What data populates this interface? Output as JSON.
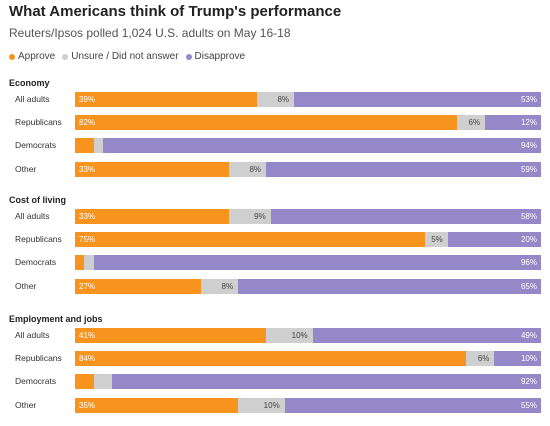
{
  "title": "What Americans think of Trump's performance",
  "subtitle": "Reuters/Ipsos polled 1,024 U.S. adults on May 16-18",
  "legend": [
    {
      "label": "Approve",
      "color": "#f7941d"
    },
    {
      "label": "Unsure / Did not answer",
      "color": "#cfcfcf"
    },
    {
      "label": "Disapprove",
      "color": "#9488c8"
    }
  ],
  "chart_data": {
    "type": "bar",
    "stacked": true,
    "orientation": "horizontal",
    "title": "What Americans think of Trump's performance",
    "subtitle": "Reuters/Ipsos polled 1,024 U.S. adults on May 16-18",
    "series_names": [
      "Approve",
      "Unsure / Did not answer",
      "Disapprove"
    ],
    "legend_position": "top-left",
    "xlim": [
      0,
      100
    ],
    "grid": false,
    "sections": [
      {
        "title": "Economy",
        "categories": [
          "All adults",
          "Republicans",
          "Democrats",
          "Other"
        ],
        "approve": [
          39,
          82,
          4,
          33
        ],
        "unsure": [
          8,
          6,
          2,
          8
        ],
        "disapprove": [
          53,
          12,
          94,
          59
        ],
        "approve_labels": [
          "39%",
          "82%",
          "",
          "33%"
        ],
        "unsure_labels": [
          "8%",
          "6%",
          "",
          "8%"
        ],
        "disapprove_labels": [
          "53%",
          "12%",
          "94%",
          "59%"
        ]
      },
      {
        "title": "Cost of living",
        "categories": [
          "All adults",
          "Republicans",
          "Democrats",
          "Other"
        ],
        "approve": [
          33,
          75,
          2,
          27
        ],
        "unsure": [
          9,
          5,
          2,
          8
        ],
        "disapprove": [
          58,
          20,
          96,
          65
        ],
        "approve_labels": [
          "33%",
          "75%",
          "",
          "27%"
        ],
        "unsure_labels": [
          "9%",
          "5%",
          "",
          "8%"
        ],
        "disapprove_labels": [
          "58%",
          "20%",
          "96%",
          "65%"
        ]
      },
      {
        "title": "Employment and jobs",
        "categories": [
          "All adults",
          "Republicans",
          "Democrats",
          "Other"
        ],
        "approve": [
          41,
          84,
          4,
          35
        ],
        "unsure": [
          10,
          6,
          4,
          10
        ],
        "disapprove": [
          49,
          10,
          92,
          55
        ],
        "approve_labels": [
          "41%",
          "84%",
          "",
          "35%"
        ],
        "unsure_labels": [
          "10%",
          "6%",
          "",
          "10%"
        ],
        "disapprove_labels": [
          "49%",
          "10%",
          "92%",
          "55%"
        ]
      }
    ]
  }
}
